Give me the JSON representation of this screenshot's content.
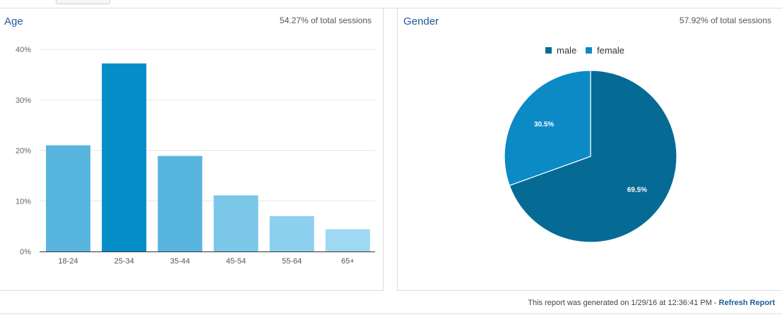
{
  "report": {
    "generated_prefix": "This report was generated on 1/29/16 at 12:36:41 PM - ",
    "refresh_label": "Refresh Report"
  },
  "age": {
    "title": "Age",
    "subtitle": "54.27% of total sessions"
  },
  "gender": {
    "title": "Gender",
    "subtitle": "57.92% of total sessions"
  },
  "chart_data": [
    {
      "type": "bar",
      "title": "Age",
      "categories": [
        "18-24",
        "25-34",
        "35-44",
        "45-54",
        "55-64",
        "65+"
      ],
      "values": [
        21.0,
        37.2,
        18.9,
        11.1,
        7.0,
        4.4
      ],
      "colors": [
        "#58b5de",
        "#058dc7",
        "#58b5de",
        "#7ac7e8",
        "#8dcfee",
        "#9ed8f2"
      ],
      "ylim": [
        0,
        40
      ],
      "yticks": [
        0,
        10,
        20,
        30,
        40
      ],
      "ytick_labels": [
        "0%",
        "10%",
        "20%",
        "30%",
        "40%"
      ],
      "grid": true
    },
    {
      "type": "pie",
      "title": "Gender",
      "labels": [
        "male",
        "female"
      ],
      "values": [
        69.5,
        30.5
      ],
      "value_labels": [
        "69.5%",
        "30.5%"
      ],
      "colors": [
        "#056b95",
        "#0b8ac6"
      ],
      "legend": "top"
    }
  ]
}
